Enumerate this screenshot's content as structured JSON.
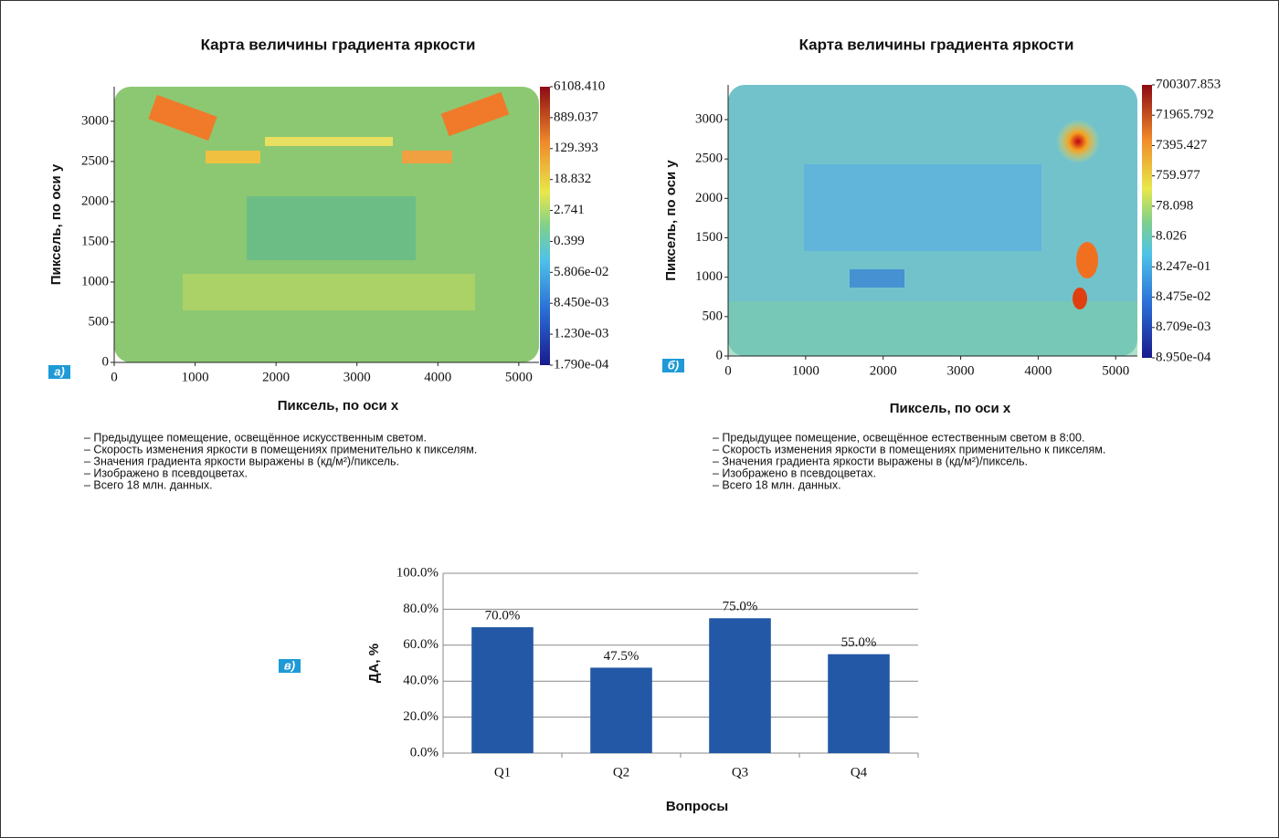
{
  "chart_data": [
    {
      "type": "heatmap",
      "title": "Карта величины градиента яркости",
      "xlabel": "Пиксель, по оси x",
      "ylabel": "Пиксель, по оси y",
      "panel_label": "а)",
      "xlim": [
        0,
        5250
      ],
      "xticks": [
        0,
        1000,
        2000,
        3000,
        4000,
        5000
      ],
      "ylim": [
        0,
        3430
      ],
      "yticks": [
        0,
        500,
        1000,
        1500,
        2000,
        2500,
        3000
      ],
      "colorbar": {
        "scale": "log",
        "lim": [
          0.000179,
          6108.41
        ],
        "ticks": [
          {
            "value": 0.000179,
            "label": "1.790e-04"
          },
          {
            "value": 0.00123,
            "label": "1.230e-03"
          },
          {
            "value": 0.00845,
            "label": "8.450e-03"
          },
          {
            "value": 0.05806,
            "label": "5.806e-02"
          },
          0.399,
          2.741,
          18.832,
          129.393,
          889.037,
          {
            "value": 6108.41,
            "label": "6108.410"
          }
        ]
      },
      "notes": [
        "– Предыдущее помещение, освещённое искусственным светом.",
        "– Скорость изменения яркости в помещениях применительно к пикселям.",
        "– Значения градиента яркости выражены в (кд/м²)/пиксель.",
        "– Изображено в псевдоцветах.",
        "– Всего 18 млн. данных."
      ]
    },
    {
      "type": "heatmap",
      "title": "Карта величины градиента яркости",
      "xlabel": "Пиксель, по оси x",
      "ylabel": "Пиксель, по оси y",
      "panel_label": "б)",
      "xlim": [
        0,
        5280
      ],
      "xticks": [
        0,
        1000,
        2000,
        3000,
        4000,
        5000
      ],
      "ylim": [
        0,
        3440
      ],
      "yticks": [
        0,
        500,
        1000,
        1500,
        2000,
        2500,
        3000
      ],
      "colorbar": {
        "scale": "log",
        "lim": [
          0.000895,
          700307.853
        ],
        "ticks": [
          {
            "value": 0.000895,
            "label": "8.950e-04"
          },
          {
            "value": 0.008709,
            "label": "8.709e-03"
          },
          {
            "value": 0.08475,
            "label": "8.475e-02"
          },
          {
            "value": 0.8247,
            "label": "8.247e-01"
          },
          8.026,
          78.098,
          759.977,
          7395.427,
          71965.792,
          700307.853
        ]
      },
      "notes": [
        "– Предыдущее помещение, освещённое естественным светом в 8:00.",
        "– Скорость изменения яркости в помещениях применительно к пикселям.",
        "– Значения градиента яркости выражены в (кд/м²)/пиксель.",
        "– Изображено в псевдоцветах.",
        "– Всего 18 млн. данных."
      ]
    },
    {
      "type": "bar",
      "xlabel": "Вопросы",
      "ylabel": "ДА, %",
      "panel_label": "в)",
      "categories": [
        "Q1",
        "Q2",
        "Q3",
        "Q4"
      ],
      "values": [
        70,
        47.5,
        75,
        55
      ],
      "value_labels": [
        "70.0%",
        "47.5%",
        "75.0%",
        "55.0%"
      ],
      "color": "#2358a6",
      "ylim": [
        0,
        100
      ],
      "yticks": [
        {
          "value": 0,
          "label": "0.0%"
        },
        {
          "value": 20,
          "label": "20.0%"
        },
        {
          "value": 40,
          "label": "40.0%"
        },
        {
          "value": 60,
          "label": "60.0%"
        },
        {
          "value": 80,
          "label": "80.0%"
        },
        {
          "value": 100,
          "label": "100.0%"
        }
      ],
      "grid": true
    }
  ]
}
